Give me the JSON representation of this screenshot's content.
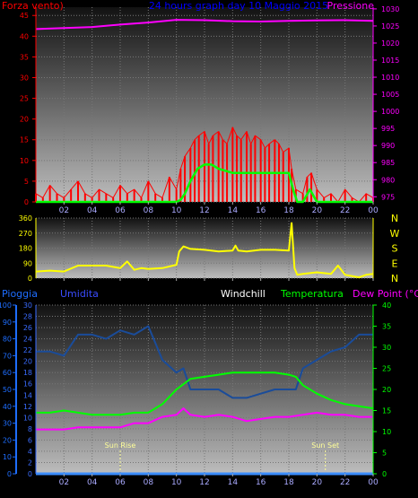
{
  "chart_data": [
    {
      "id": "wind_pressure",
      "type": "line",
      "title": "24 hours graph day  10 Maggio 2015",
      "left_label": "Forza vento)",
      "right_label": "Pressione",
      "left_ticks": [
        "0",
        "5",
        "10",
        "15",
        "20",
        "25",
        "30",
        "35",
        "40",
        "45"
      ],
      "right_ticks": [
        "975",
        "980",
        "985",
        "990",
        "995",
        "1000",
        "1005",
        "1010",
        "1015",
        "1020",
        "1025",
        "1030"
      ],
      "x_ticks": [
        "02",
        "04",
        "06",
        "08",
        "10",
        "12",
        "14",
        "16",
        "18",
        "20",
        "22",
        "00"
      ],
      "ylim_left": [
        0,
        47
      ],
      "ylim_right": [
        973.5,
        1030.5
      ],
      "series": [
        {
          "name": "wind_gust",
          "axis": "left",
          "color": "#ff0000",
          "style": "bars",
          "x": [
            0,
            0.5,
            1,
            1.5,
            2,
            2.5,
            3,
            3.5,
            4,
            4.5,
            5,
            5.5,
            6,
            6.5,
            7,
            7.5,
            8,
            8.5,
            9,
            9.5,
            10,
            10.3,
            10.6,
            11,
            11.3,
            11.6,
            12,
            12.3,
            12.6,
            13,
            13.3,
            13.6,
            14,
            14.3,
            14.6,
            15,
            15.3,
            15.6,
            16,
            16.3,
            16.6,
            17,
            17.3,
            17.6,
            18,
            18.2,
            18.5,
            19,
            19.3,
            19.6,
            20,
            20.5,
            21,
            21.5,
            22,
            22.5,
            23,
            23.5,
            24
          ],
          "y": [
            2,
            1,
            4,
            2,
            1,
            3,
            5,
            2,
            1,
            3,
            2,
            1,
            4,
            2,
            3,
            1,
            5,
            2,
            1,
            6,
            3,
            8,
            11,
            13,
            15,
            16,
            17,
            14,
            16,
            17,
            15,
            14,
            18,
            16,
            15,
            17,
            14,
            16,
            15,
            13,
            14,
            15,
            14,
            12,
            13,
            8,
            3,
            2,
            6,
            7,
            3,
            1,
            2,
            0,
            3,
            1,
            0,
            2,
            1
          ]
        },
        {
          "name": "wind_avg",
          "axis": "left",
          "color": "#00ff00",
          "x": [
            0,
            9,
            10,
            10.3,
            10.6,
            11,
            11.5,
            12,
            12.5,
            13,
            14,
            15,
            16,
            17,
            18,
            18.3,
            18.6,
            19,
            19.5,
            20,
            24
          ],
          "y": [
            0,
            0,
            0,
            0.5,
            2,
            5,
            8,
            9,
            9,
            8,
            7,
            7,
            7,
            7,
            7,
            3,
            0,
            0,
            3,
            0,
            0
          ]
        },
        {
          "name": "pressure",
          "axis": "right",
          "color": "#ff00ff",
          "x": [
            0,
            2,
            4,
            6,
            8,
            10,
            12,
            14,
            16,
            18,
            20,
            22,
            24
          ],
          "y": [
            1024.1,
            1024.4,
            1024.7,
            1025.4,
            1026.0,
            1026.8,
            1026.7,
            1026.4,
            1026.3,
            1026.5,
            1026.6,
            1026.7,
            1026.5
          ]
        }
      ]
    },
    {
      "id": "wind_direction",
      "type": "line",
      "left_ticks": [
        "0",
        "90",
        "180",
        "270",
        "360"
      ],
      "right_ticks": [
        "N",
        "E",
        "S",
        "W",
        "N"
      ],
      "x_ticks": [
        "02",
        "04",
        "06",
        "08",
        "10",
        "12",
        "14",
        "16",
        "18",
        "20",
        "22",
        "00"
      ],
      "ylim": [
        0,
        360
      ],
      "series": [
        {
          "name": "direction",
          "color": "#ffff00",
          "x": [
            0,
            1,
            2,
            3,
            4,
            5,
            6,
            6.5,
            7,
            7.5,
            8,
            9,
            10,
            10.2,
            10.5,
            11,
            12,
            13,
            14,
            14.2,
            14.4,
            15,
            16,
            17,
            18,
            18.2,
            18.4,
            18.6,
            19,
            20,
            20.5,
            21,
            21.5,
            22,
            23,
            23.5,
            24
          ],
          "y": [
            40,
            45,
            40,
            75,
            75,
            75,
            60,
            100,
            50,
            60,
            55,
            60,
            80,
            160,
            190,
            175,
            170,
            160,
            165,
            195,
            165,
            160,
            170,
            170,
            165,
            330,
            60,
            20,
            25,
            35,
            30,
            25,
            75,
            20,
            5,
            20,
            25
          ]
        }
      ]
    },
    {
      "id": "temp_humidity",
      "type": "line",
      "left_label_1": "Pioggia",
      "left_label_2": "Umidita",
      "label_windchill": "Windchill",
      "label_temperature": "Temperatura",
      "label_dewpoint": "Dew Point (°C)",
      "rain_ticks": [
        "0",
        "10",
        "20",
        "30",
        "40",
        "50",
        "60",
        "70",
        "80",
        "90",
        "100"
      ],
      "humidity_ticks": [
        "0",
        "2",
        "4",
        "6",
        "8",
        "10",
        "12",
        "14",
        "16",
        "18",
        "20",
        "22",
        "24",
        "26",
        "28",
        "30"
      ],
      "temp_ticks": [
        "0",
        "5",
        "10",
        "15",
        "20",
        "25",
        "30",
        "35",
        "40"
      ],
      "x_ticks": [
        "02",
        "04",
        "06",
        "08",
        "10",
        "12",
        "14",
        "16",
        "18",
        "20",
        "22",
        "00"
      ],
      "sunrise_label": "Sun Rise",
      "sunset_label": "Sun Set",
      "sunrise_hour": 6,
      "sunset_hour": 20.6,
      "ylim_temp": [
        0,
        40
      ],
      "series": [
        {
          "name": "humidity",
          "axis": "temp",
          "color": "#1a4c9a",
          "x": [
            0,
            1,
            2,
            3,
            4,
            5,
            6,
            7,
            8,
            8.5,
            9,
            10,
            10.5,
            11,
            12,
            13,
            14,
            15,
            16,
            17,
            18,
            18.5,
            19,
            20,
            21,
            22,
            23,
            24
          ],
          "y": [
            29,
            29,
            28,
            33,
            33,
            32,
            34,
            33,
            35,
            31,
            27,
            24,
            25,
            20,
            20,
            20,
            18,
            18,
            19,
            20,
            20,
            20,
            25,
            27,
            29,
            30,
            33,
            33
          ]
        },
        {
          "name": "temperature",
          "axis": "temp",
          "color": "#00ff00",
          "x": [
            0,
            1,
            2,
            3,
            4,
            5,
            6,
            7,
            7.5,
            8,
            9,
            10,
            11,
            12,
            13,
            14,
            15,
            16,
            17,
            18,
            18.5,
            19,
            20,
            21,
            22,
            23,
            24
          ],
          "y": [
            14.5,
            14.5,
            15,
            14.5,
            14,
            14,
            14,
            14.5,
            14.5,
            14.5,
            16.5,
            20,
            22.5,
            23,
            23.5,
            24,
            24,
            24,
            24,
            23.5,
            23,
            21,
            19,
            17.5,
            16.5,
            16,
            15.5
          ]
        },
        {
          "name": "dewpoint",
          "axis": "temp",
          "color": "#ff00ff",
          "x": [
            0,
            1,
            2,
            3,
            4,
            5,
            6,
            7,
            8,
            9,
            10,
            10.5,
            11,
            12,
            13,
            14,
            15,
            16,
            17,
            18,
            19,
            20,
            21,
            22,
            23,
            24
          ],
          "y": [
            10.5,
            10.5,
            10.5,
            11,
            11,
            11,
            11,
            12,
            12,
            13.5,
            14,
            15.5,
            14,
            13.5,
            14,
            13.5,
            12.5,
            13,
            13.5,
            13.5,
            14,
            14.5,
            14,
            14,
            13.5,
            13.5
          ]
        },
        {
          "name": "rain",
          "axis": "temp",
          "color": "#3a8cff",
          "x": [
            0,
            24
          ],
          "y": [
            0,
            0
          ]
        }
      ]
    }
  ],
  "colors": {
    "wind_label": "#ff0000",
    "title": "#0000ff",
    "pressure": "#ff00ff",
    "direction": "#ffff00",
    "rain": "#1e6eff",
    "humidity_label": "#3a4cff",
    "temperature": "#00ff00",
    "dewpoint": "#ff00ff"
  }
}
